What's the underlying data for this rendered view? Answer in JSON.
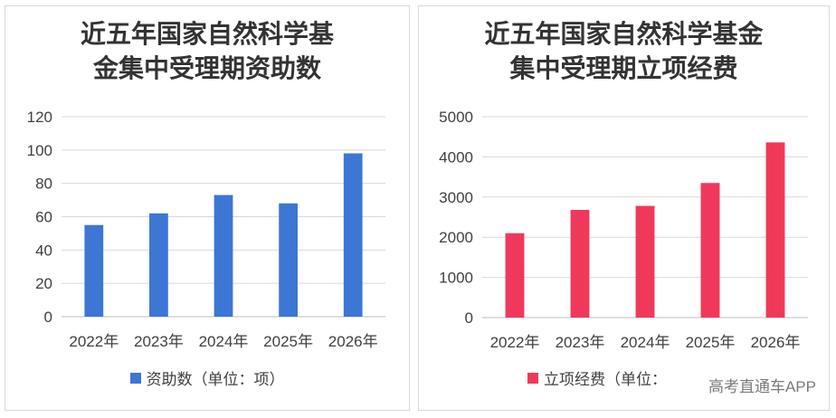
{
  "watermark": "高考直通车APP",
  "chart_data": [
    {
      "type": "bar",
      "title_lines": [
        "近五年国家自然科学基",
        "金集中受理期资助数"
      ],
      "categories": [
        "2022年",
        "2023年",
        "2024年",
        "2025年",
        "2026年"
      ],
      "series": [
        {
          "name": "资助数（单位：项）",
          "values": [
            55,
            62,
            73,
            68,
            98
          ]
        }
      ],
      "ylim": [
        0,
        120
      ],
      "yticks": [
        0,
        20,
        40,
        60,
        80,
        100,
        120
      ],
      "grid": true,
      "legend": "bottom",
      "color": "#3d76d4"
    },
    {
      "type": "bar",
      "title_lines": [
        "近五年国家自然科学基金",
        "集中受理期立项经费"
      ],
      "categories": [
        "2022年",
        "2023年",
        "2024年",
        "2025年",
        "2026年"
      ],
      "series": [
        {
          "name": "立项经费（单位：",
          "values": [
            2100,
            2680,
            2780,
            3350,
            4360
          ]
        }
      ],
      "ylim": [
        0,
        5000
      ],
      "yticks": [
        0,
        1000,
        2000,
        3000,
        4000,
        5000
      ],
      "grid": true,
      "legend": "bottom",
      "color": "#f0395a"
    }
  ]
}
